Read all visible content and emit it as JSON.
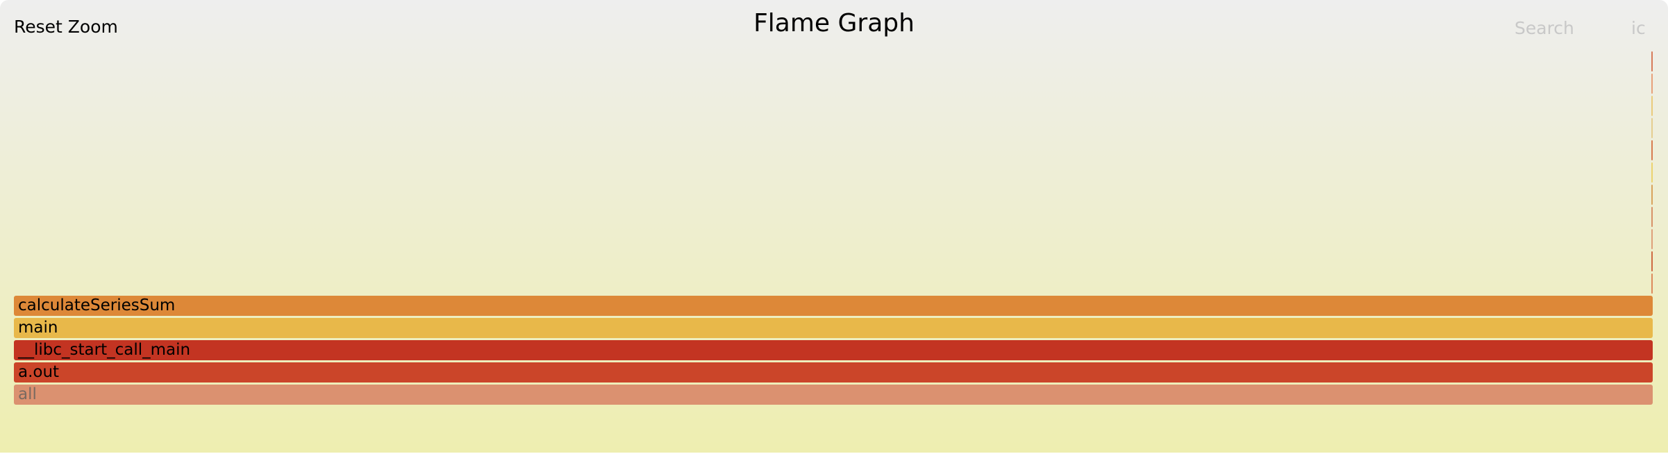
{
  "toolbar": {
    "reset_zoom_label": "Reset Zoom",
    "title": "Flame Graph",
    "search_label": "Search",
    "ic_label": "ic"
  },
  "frames": [
    {
      "label": "calculateSeriesSum",
      "color": "#dd8838"
    },
    {
      "label": "main",
      "color": "#e8b84a"
    },
    {
      "label": "__libc_start_call_main",
      "color": "#c33422"
    },
    {
      "label": "a.out",
      "color": "#cb4529"
    },
    {
      "label": "all",
      "color": "#db9170",
      "text_color": "#7a6a60"
    }
  ],
  "sliver_colors": [
    "#d77b5a",
    "#e8a07a",
    "#eacb7c",
    "#e5cd8f",
    "#d87c50",
    "#ecd36f",
    "#d9a35c",
    "#d89268",
    "#dfa07a",
    "#cf6b43",
    "#dd8a5c"
  ]
}
